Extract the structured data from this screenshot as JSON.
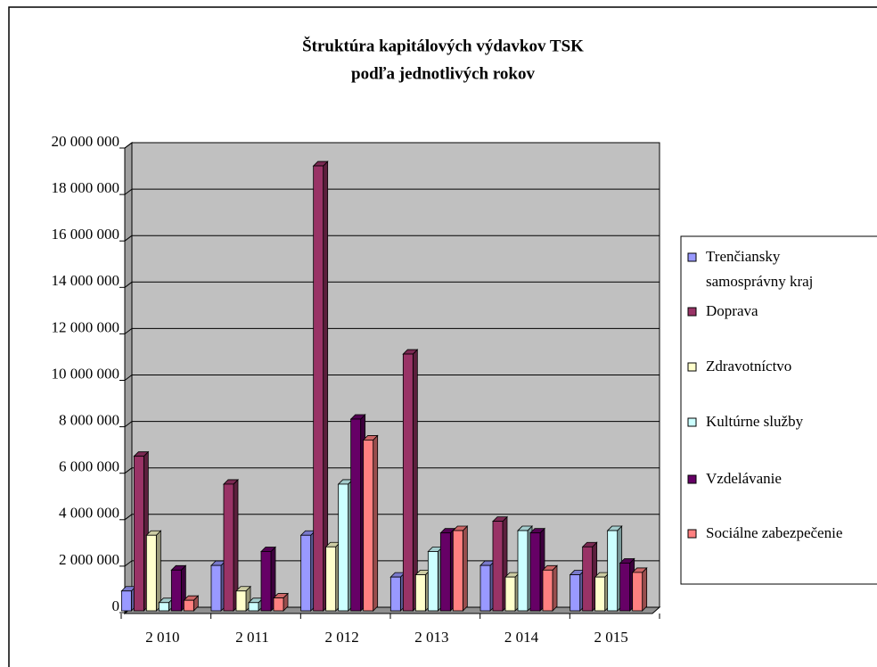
{
  "chart_data": {
    "type": "bar3d",
    "title": [
      "Štruktúra kapitálových výdavkov TSK",
      "podľa jednotlivých rokov"
    ],
    "categories": [
      "2 010",
      "2 011",
      "2 012",
      "2 013",
      "2 014",
      "2 015"
    ],
    "series": [
      {
        "name": "Trenčiansky samosprávny kraj",
        "color": "#9999ff",
        "values": [
          700000,
          1800000,
          3100000,
          1300000,
          1800000,
          1400000
        ]
      },
      {
        "name": "Doprava",
        "color": "#993366",
        "values": [
          6500000,
          5300000,
          19000000,
          10900000,
          3700000,
          2600000
        ]
      },
      {
        "name": "Zdravotníctvo",
        "color": "#ffffcc",
        "values": [
          3100000,
          700000,
          2600000,
          1400000,
          1300000,
          1300000
        ]
      },
      {
        "name": "Kultúrne služby",
        "color": "#ccffff",
        "values": [
          200000,
          200000,
          5300000,
          2400000,
          3300000,
          3300000
        ]
      },
      {
        "name": "Vzdelávanie",
        "color": "#660066",
        "values": [
          1600000,
          2400000,
          8100000,
          3200000,
          3200000,
          1900000
        ]
      },
      {
        "name": "Sociálne zabezpečenie",
        "color": "#ff8080",
        "values": [
          300000,
          400000,
          7200000,
          3300000,
          1600000,
          1500000
        ]
      }
    ],
    "ylim": [
      0,
      20000000
    ],
    "yticks": [
      {
        "value": 0,
        "label": "0"
      },
      {
        "value": 2000000,
        "label": "2 000 000"
      },
      {
        "value": 4000000,
        "label": "4 000 000"
      },
      {
        "value": 6000000,
        "label": "6 000 000"
      },
      {
        "value": 8000000,
        "label": "8 000 000"
      },
      {
        "value": 10000000,
        "label": "10 000 000"
      },
      {
        "value": 12000000,
        "label": "12 000 000"
      },
      {
        "value": 14000000,
        "label": "14 000 000"
      },
      {
        "value": 16000000,
        "label": "16 000 000"
      },
      {
        "value": 18000000,
        "label": "18 000 000"
      },
      {
        "value": 20000000,
        "label": "20 000 000"
      }
    ],
    "grid": true
  }
}
